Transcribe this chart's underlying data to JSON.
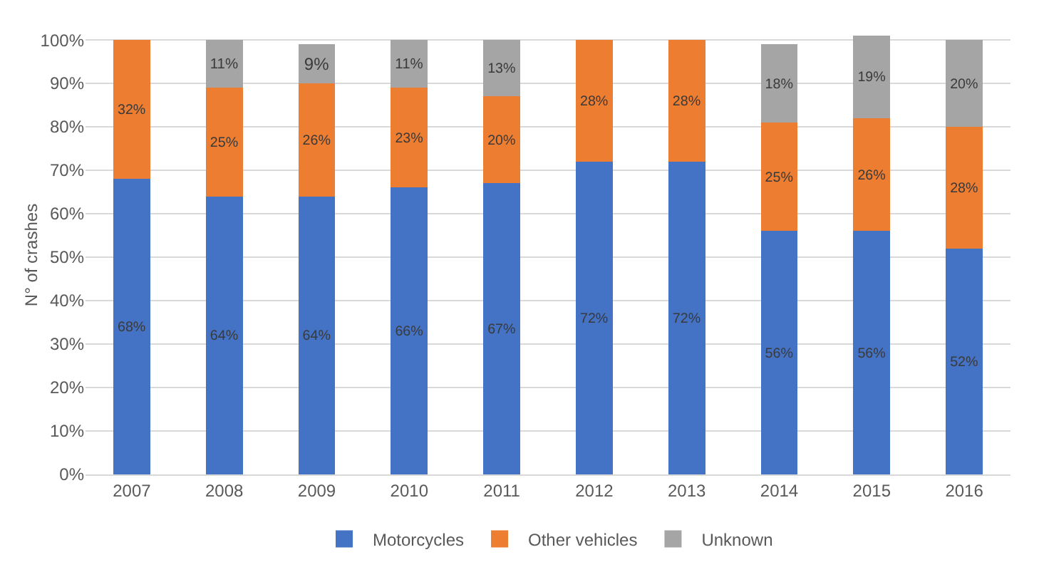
{
  "chart_data": {
    "type": "bar",
    "stacked": true,
    "ylabel": "N° of crashes",
    "categories": [
      "2007",
      "2008",
      "2009",
      "2010",
      "2011",
      "2012",
      "2013",
      "2014",
      "2015",
      "2016"
    ],
    "series": [
      {
        "name": "Motorcycles",
        "color": "#4472c4",
        "values": [
          68,
          64,
          64,
          66,
          67,
          72,
          72,
          56,
          56,
          52
        ],
        "value_labels": [
          "68%",
          "64%",
          "64%",
          "66%",
          "67%",
          "72%",
          "72%",
          "56%",
          "56%",
          "52%"
        ]
      },
      {
        "name": "Other vehicles",
        "color": "#ed7d31",
        "values": [
          32,
          25,
          26,
          23,
          20,
          28,
          28,
          25,
          26,
          28
        ],
        "value_labels": [
          "32%",
          "25%",
          "26%",
          "23%",
          "20%",
          "28%",
          "28%",
          "25%",
          "26%",
          "28%"
        ]
      },
      {
        "name": "Unknown",
        "color": "#a5a5a5",
        "values": [
          null,
          11,
          9,
          11,
          13,
          null,
          null,
          18,
          19,
          20
        ],
        "value_labels": [
          null,
          "11%",
          "9%",
          "11%",
          "13%",
          null,
          null,
          "18%",
          "19%",
          "20%"
        ]
      }
    ],
    "ylim": [
      0,
      101
    ],
    "yticks": [
      {
        "value": 0,
        "label": "0%"
      },
      {
        "value": 10,
        "label": "10%"
      },
      {
        "value": 20,
        "label": "20%"
      },
      {
        "value": 30,
        "label": "30%"
      },
      {
        "value": 40,
        "label": "40%"
      },
      {
        "value": 50,
        "label": "50%"
      },
      {
        "value": 60,
        "label": "60%"
      },
      {
        "value": 70,
        "label": "70%"
      },
      {
        "value": 80,
        "label": "80%"
      },
      {
        "value": 90,
        "label": "90%"
      },
      {
        "value": 100,
        "label": "100%"
      }
    ],
    "grid": "y",
    "legend": "bottom"
  }
}
